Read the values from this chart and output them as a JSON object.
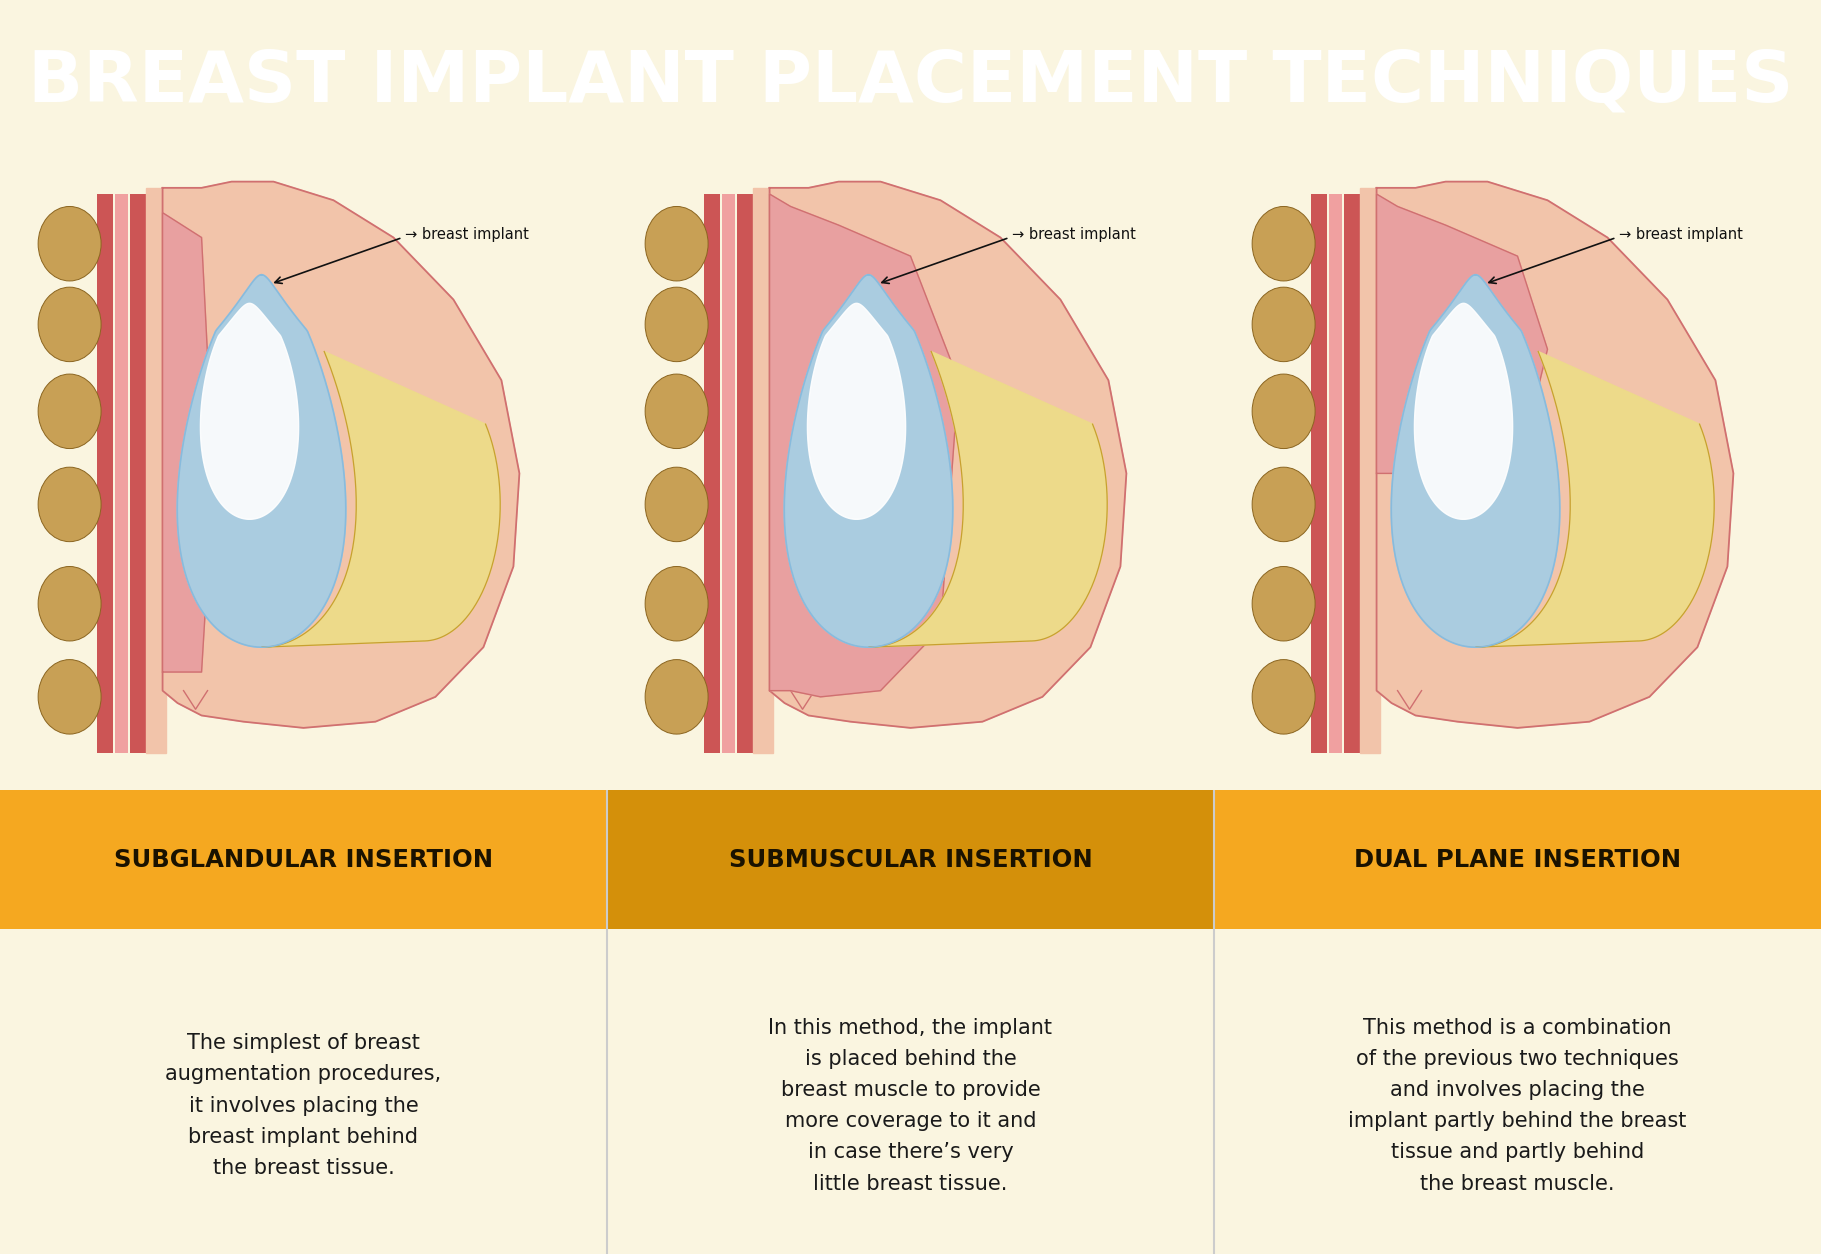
{
  "title": "BREAST IMPLANT PLACEMENT TECHNIQUES",
  "title_bg": "#A01E5E",
  "title_color": "#FFFFFF",
  "bg_color": "#FAF5E0",
  "orange1": "#F5A820",
  "orange2": "#D4900A",
  "skin_fill": "#F2C4AA",
  "skin_edge": "#D07070",
  "muscle_pink": "#E09090",
  "muscle_strip1": "#D07070",
  "muscle_strip2": "#E89090",
  "rib_tan": "#C8A055",
  "rib_edge": "#8B6520",
  "implant_blue": "#AACCE0",
  "implant_hl": "#DDEEF8",
  "fat_yellow": "#EDDA8A",
  "fat_edge": "#C8A030",
  "annotation_color": "#222222",
  "annotation_text": "breast implant",
  "techniques": [
    {
      "name": "SUBGLANDULAR INSERTION",
      "description": "The simplest of breast\naugmentation procedures,\nit involves placing the\nbreast implant behind\nthe breast tissue.",
      "orange": "#F5A820"
    },
    {
      "name": "SUBMUSCULAR INSERTION",
      "description": "In this method, the implant\nis placed behind the\nbreast muscle to provide\nmore coverage to it and\nin case there’s very\nlittle breast tissue.",
      "orange": "#D4900A"
    },
    {
      "name": "DUAL PLANE INSERTION",
      "description": "This method is a combination\nof the previous two techniques\nand involves placing the\nimplant partly behind the breast\ntissue and partly behind\nthe breast muscle.",
      "orange": "#F5A820"
    }
  ]
}
